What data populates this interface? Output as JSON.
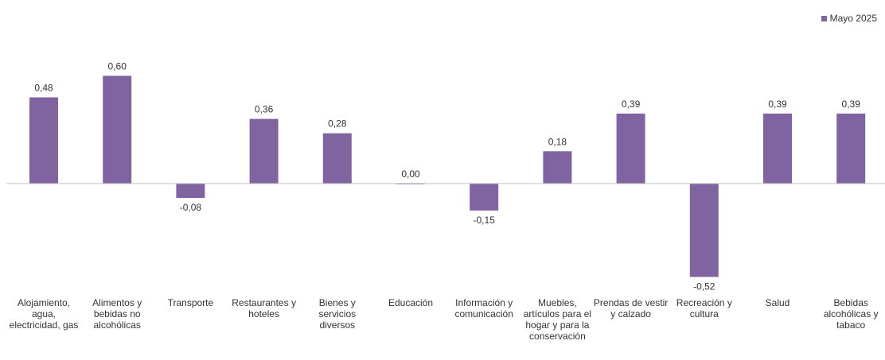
{
  "legend": {
    "label": "Mayo 2025",
    "color": "#8064a2"
  },
  "chart_data": {
    "type": "bar",
    "categories": [
      "Alojamiento, agua, electricidad, gas",
      "Alimentos y bebidas no alcohólicas",
      "Transporte",
      "Restaurantes y hoteles",
      "Bienes y servicios diversos",
      "Educación",
      "Información y comunicación",
      "Muebles, artículos para el hogar y para la conservación",
      "Prendas de vestir y calzado",
      "Recreación y cultura",
      "Salud",
      "Bebidas alcohólicas y tabaco"
    ],
    "series": [
      {
        "name": "Mayo 2025",
        "values": [
          0.48,
          0.6,
          -0.08,
          0.36,
          0.28,
          0.0,
          -0.15,
          0.18,
          0.39,
          -0.52,
          0.39,
          0.39
        ],
        "labels": [
          "0,48",
          "0,60",
          "-0,08",
          "0,36",
          "0,28",
          "0,00",
          "-0,15",
          "0,18",
          "0,39",
          "-0,52",
          "0,39",
          "0,39"
        ]
      }
    ],
    "legend_position": "top-right",
    "grid": false,
    "bar_color": "#8064a2",
    "axis_color": "#bfbfbf"
  }
}
